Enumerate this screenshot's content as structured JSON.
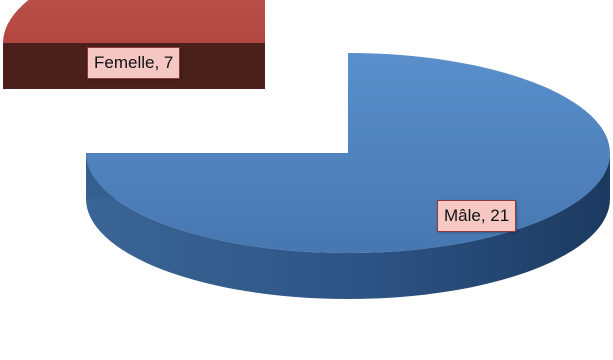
{
  "chart_data": {
    "type": "pie",
    "style": "3d-exploded",
    "slices": [
      {
        "label": "Mâle",
        "value": 21,
        "color": "#4f81bd",
        "data_label": "Mâle, 21"
      },
      {
        "label": "Femelle",
        "value": 7,
        "color": "#c0504d",
        "data_label": "Femelle, 7"
      }
    ],
    "legend": "none"
  }
}
